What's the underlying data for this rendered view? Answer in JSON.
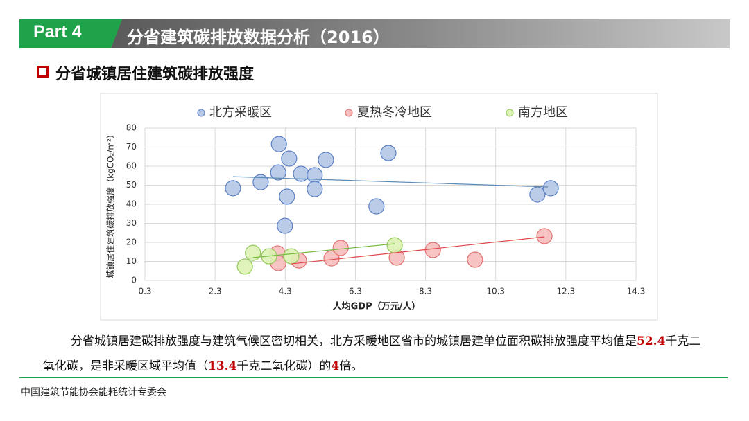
{
  "header": {
    "part": "Part 4",
    "title": "分省建筑碳排放数据分析（2016）"
  },
  "section_title": "分省城镇居住建筑碳排放强度",
  "chart_data": {
    "type": "scatter",
    "y_label": "城镇居住建筑碳排放强度（kgCO₂/m²）",
    "x_label": "人均GDP（万元/人）",
    "xlim": [
      0.3,
      14.3
    ],
    "xticks": [
      0.3,
      2.3,
      4.3,
      6.3,
      8.3,
      10.3,
      12.3,
      14.3
    ],
    "ylim": [
      0,
      80
    ],
    "yticks": [
      0,
      10,
      20,
      30,
      40,
      50,
      60,
      70,
      80
    ],
    "grid": true,
    "legend": "top",
    "series": [
      {
        "name": "北方采暖区",
        "color": "#b4c7e7",
        "edge": "#5b7fc4",
        "trend_color": "#5b8bb5",
        "x": [
          2.81,
          3.6,
          4.12,
          4.41,
          4.1,
          4.35,
          4.29,
          4.75,
          5.14,
          5.14,
          5.46,
          7.24,
          6.9,
          11.49,
          11.87
        ],
        "values": [
          48.4,
          51.6,
          71.6,
          64.0,
          56.7,
          44.0,
          28.7,
          56.0,
          55.3,
          48.0,
          63.3,
          66.9,
          38.9,
          45.1,
          48.4
        ],
        "trend": {
          "x": [
            2.81,
            11.79
          ],
          "values": [
            54.5,
            49.1
          ]
        }
      },
      {
        "name": "夏热冬冷地区",
        "color": "#f6bcbc",
        "edge": "#e07070",
        "trend_color": "#e04848",
        "x": [
          4.08,
          4.1,
          4.69,
          5.62,
          5.88,
          7.48,
          8.51,
          9.71,
          11.69
        ],
        "values": [
          14.2,
          9.1,
          10.5,
          11.6,
          17.1,
          12.0,
          16.0,
          10.9,
          23.3
        ],
        "trend": {
          "x": [
            4.47,
            11.69
          ],
          "values": [
            8.7,
            22.9
          ]
        }
      },
      {
        "name": "南方地区",
        "color": "#dcf2b4",
        "edge": "#92c85a",
        "trend_color": "#70b838",
        "x": [
          3.15,
          3.38,
          3.84,
          4.47,
          7.42
        ],
        "values": [
          7.3,
          14.5,
          12.7,
          12.7,
          18.5
        ],
        "trend": {
          "x": [
            3.38,
            7.42
          ],
          "values": [
            12.0,
            19.3
          ]
        }
      }
    ]
  },
  "paragraph": [
    {
      "text": "分省城镇居建碳排放强度与建筑气候区密切相关，北方采暖地区省市的城镇居建单位面积碳排放强度平均值是",
      "highlight": false
    },
    {
      "text": "52.4",
      "highlight": true
    },
    {
      "text": "千克二氧化碳，是非采暖区域平均值（",
      "highlight": false
    },
    {
      "text": "13.4",
      "highlight": true
    },
    {
      "text": "千克二氧化碳）的",
      "highlight": false
    },
    {
      "text": "4",
      "highlight": true
    },
    {
      "text": "倍。",
      "highlight": false
    }
  ],
  "footer": "中国建筑节能协会能耗统计专委会"
}
